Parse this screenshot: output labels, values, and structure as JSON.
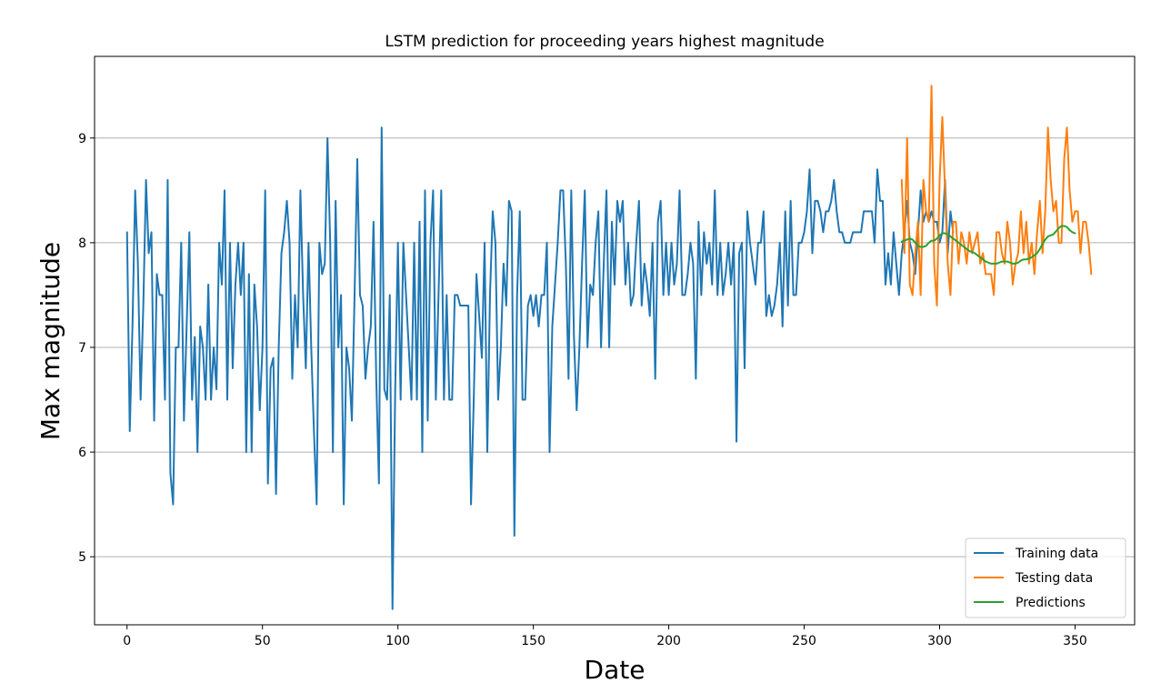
{
  "chart_data": {
    "type": "line",
    "title": "LSTM prediction for proceeding years highest magnitude",
    "xlabel": "Date",
    "ylabel": "Max magnitude",
    "xlim": [
      -12,
      372
    ],
    "ylim": [
      4.35,
      9.78
    ],
    "x_ticks": [
      0,
      50,
      100,
      150,
      200,
      250,
      300,
      350
    ],
    "y_ticks": [
      5,
      6,
      7,
      8,
      9
    ],
    "grid": "horizontal",
    "legend_position": "lower-right",
    "series": [
      {
        "name": "Training data",
        "color": "#1f77b4",
        "x_start": 0,
        "values": [
          8.1,
          6.2,
          7.2,
          8.5,
          7.8,
          6.5,
          7.4,
          8.6,
          7.9,
          8.1,
          6.3,
          7.7,
          7.5,
          7.5,
          6.5,
          8.6,
          5.8,
          5.5,
          7.0,
          7.0,
          8.0,
          6.3,
          7.2,
          8.1,
          6.5,
          7.1,
          6.0,
          7.2,
          7.0,
          6.5,
          7.6,
          6.5,
          7.0,
          6.6,
          8.0,
          7.6,
          8.5,
          6.5,
          8.0,
          6.8,
          7.6,
          8.0,
          7.5,
          8.0,
          6.0,
          7.7,
          6.0,
          7.6,
          7.2,
          6.4,
          7.0,
          8.5,
          5.7,
          6.8,
          6.9,
          5.6,
          7.0,
          7.9,
          8.1,
          8.4,
          8.0,
          6.7,
          7.5,
          7.0,
          8.5,
          7.5,
          6.8,
          8.0,
          7.0,
          6.2,
          5.5,
          8.0,
          7.7,
          7.8,
          9.0,
          8.0,
          6.0,
          8.4,
          7.0,
          7.5,
          5.5,
          7.0,
          6.8,
          6.3,
          7.5,
          8.8,
          7.5,
          7.4,
          6.7,
          7.0,
          7.2,
          8.2,
          6.7,
          5.7,
          9.1,
          6.6,
          6.5,
          7.5,
          4.5,
          6.6,
          8.0,
          6.5,
          8.0,
          7.5,
          7.0,
          6.5,
          8.0,
          6.5,
          8.2,
          6.0,
          8.5,
          6.3,
          8.0,
          8.5,
          6.5,
          7.5,
          8.5,
          6.5,
          7.5,
          6.5,
          6.5,
          7.5,
          7.5,
          7.4,
          7.4,
          7.4,
          7.4,
          5.5,
          6.5,
          7.7,
          7.3,
          6.9,
          8.0,
          6.0,
          7.5,
          8.3,
          8.0,
          6.5,
          7.0,
          7.8,
          7.4,
          8.4,
          8.3,
          5.2,
          7.5,
          8.3,
          6.5,
          6.5,
          7.4,
          7.5,
          7.3,
          7.5,
          7.2,
          7.5,
          7.5,
          8.0,
          6.0,
          7.2,
          7.6,
          8.0,
          8.5,
          8.5,
          7.8,
          6.7,
          8.5,
          7.1,
          6.4,
          7.0,
          7.8,
          8.5,
          7.0,
          7.6,
          7.5,
          8.0,
          8.3,
          7.0,
          7.8,
          8.5,
          7.0,
          8.2,
          7.6,
          8.4,
          8.2,
          8.4,
          7.6,
          8.0,
          7.4,
          7.5,
          8.0,
          8.4,
          7.4,
          7.8,
          7.6,
          7.3,
          8.0,
          6.7,
          8.2,
          8.4,
          7.5,
          8.0,
          7.5,
          8.0,
          7.6,
          7.8,
          8.5,
          7.5,
          7.5,
          7.7,
          8.0,
          7.8,
          6.7,
          8.2,
          7.5,
          8.1,
          7.8,
          8.0,
          7.6,
          8.5,
          7.5,
          8.0,
          7.5,
          7.7,
          8.0,
          7.6,
          8.0,
          6.1,
          7.9,
          8.0,
          6.8,
          8.3,
          8.0,
          7.8,
          7.6,
          8.0,
          8.0,
          8.3,
          7.3,
          7.5,
          7.3,
          7.4,
          7.6,
          8.0,
          7.2,
          8.3,
          7.4,
          8.4,
          7.5,
          7.5,
          8.0,
          8.0,
          8.1,
          8.3,
          8.7,
          7.9,
          8.4,
          8.4,
          8.3,
          8.1,
          8.3,
          8.3,
          8.4,
          8.6,
          8.3,
          8.1,
          8.1,
          8.0,
          8.0,
          8.0,
          8.1,
          8.1,
          8.1,
          8.1,
          8.3,
          8.3,
          8.3,
          8.3,
          8.0,
          8.7,
          8.4,
          8.4,
          7.6,
          7.9,
          7.6,
          8.1,
          7.8,
          7.5,
          7.9,
          8.1,
          8.4,
          8.0,
          7.9,
          7.7,
          8.1,
          8.5,
          8.2,
          8.3,
          8.2,
          8.3,
          8.2,
          8.2,
          8.0,
          8.1,
          8.6,
          7.9,
          8.3,
          8.1
        ]
      },
      {
        "name": "Testing data",
        "color": "#ff7f0e",
        "x_start": 286,
        "values": [
          8.6,
          7.9,
          9.0,
          7.6,
          7.5,
          7.9,
          8.2,
          7.5,
          8.6,
          8.3,
          8.2,
          9.5,
          7.8,
          7.4,
          8.6,
          9.2,
          8.5,
          7.8,
          7.5,
          8.2,
          8.2,
          7.8,
          8.1,
          8.0,
          7.8,
          8.1,
          7.9,
          8.0,
          8.1,
          7.8,
          7.9,
          7.7,
          7.7,
          7.7,
          7.5,
          8.1,
          8.1,
          7.9,
          7.8,
          8.2,
          8.0,
          7.6,
          7.8,
          7.9,
          8.3,
          7.9,
          8.2,
          7.8,
          8.0,
          7.7,
          8.1,
          8.4,
          7.9,
          8.3,
          9.1,
          8.6,
          8.3,
          8.4,
          8.0,
          8.0,
          8.8,
          9.1,
          8.5,
          8.2,
          8.3,
          8.3,
          7.9,
          8.2,
          8.2,
          8.0,
          7.7
        ]
      },
      {
        "name": "Predictions",
        "color": "#2ca02c",
        "x_start": 286,
        "values": [
          8.01,
          8.02,
          8.03,
          8.04,
          8.03,
          8.0,
          7.97,
          7.96,
          7.96,
          7.97,
          8.0,
          8.02,
          8.02,
          8.04,
          8.07,
          8.09,
          8.09,
          8.08,
          8.06,
          8.04,
          8.02,
          8.0,
          7.98,
          7.96,
          7.94,
          7.92,
          7.91,
          7.9,
          7.88,
          7.86,
          7.84,
          7.82,
          7.81,
          7.8,
          7.8,
          7.8,
          7.81,
          7.82,
          7.82,
          7.82,
          7.81,
          7.8,
          7.8,
          7.81,
          7.83,
          7.84,
          7.84,
          7.85,
          7.86,
          7.88,
          7.9,
          7.94,
          7.99,
          8.03,
          8.06,
          8.07,
          8.08,
          8.11,
          8.14,
          8.16,
          8.16,
          8.15,
          8.12,
          8.1,
          8.09
        ]
      }
    ]
  }
}
